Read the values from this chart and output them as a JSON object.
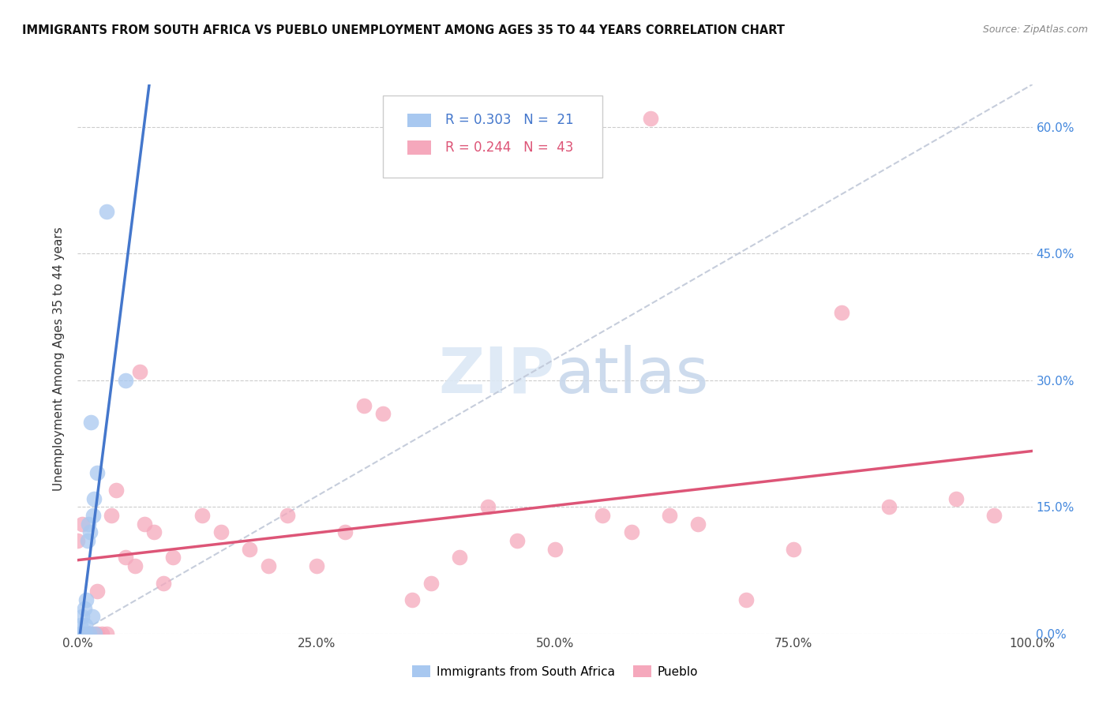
{
  "title": "IMMIGRANTS FROM SOUTH AFRICA VS PUEBLO UNEMPLOYMENT AMONG AGES 35 TO 44 YEARS CORRELATION CHART",
  "source": "Source: ZipAtlas.com",
  "ylabel": "Unemployment Among Ages 35 to 44 years",
  "blue_label": "Immigrants from South Africa",
  "pink_label": "Pueblo",
  "blue_R": "R = 0.303",
  "blue_N": "N =  21",
  "pink_R": "R = 0.244",
  "pink_N": "N =  43",
  "blue_color": "#a8c8f0",
  "pink_color": "#f5a8bc",
  "blue_line_color": "#4477cc",
  "pink_line_color": "#dd5577",
  "trend_line_color": "#c0c8d8",
  "background_color": "#ffffff",
  "blue_R_color": "#4477cc",
  "pink_R_color": "#dd5577",
  "right_axis_color": "#4488dd",
  "blue_scatter_x": [
    0.002,
    0.003,
    0.004,
    0.005,
    0.006,
    0.007,
    0.008,
    0.008,
    0.009,
    0.01,
    0.011,
    0.012,
    0.013,
    0.014,
    0.015,
    0.016,
    0.017,
    0.018,
    0.02,
    0.03,
    0.05
  ],
  "blue_scatter_y": [
    0.0,
    0.01,
    0.0,
    0.02,
    0.0,
    0.03,
    0.0,
    0.01,
    0.04,
    0.11,
    0.13,
    0.0,
    0.12,
    0.25,
    0.02,
    0.14,
    0.16,
    0.0,
    0.19,
    0.5,
    0.3
  ],
  "pink_scatter_x": [
    0.0,
    0.005,
    0.01,
    0.015,
    0.02,
    0.02,
    0.025,
    0.03,
    0.035,
    0.04,
    0.05,
    0.06,
    0.065,
    0.07,
    0.08,
    0.09,
    0.1,
    0.13,
    0.15,
    0.18,
    0.2,
    0.22,
    0.25,
    0.28,
    0.3,
    0.32,
    0.35,
    0.37,
    0.4,
    0.43,
    0.46,
    0.5,
    0.55,
    0.58,
    0.6,
    0.62,
    0.65,
    0.7,
    0.75,
    0.8,
    0.85,
    0.92,
    0.96
  ],
  "pink_scatter_y": [
    0.11,
    0.13,
    0.0,
    0.0,
    0.05,
    0.0,
    0.0,
    0.0,
    0.14,
    0.17,
    0.09,
    0.08,
    0.31,
    0.13,
    0.12,
    0.06,
    0.09,
    0.14,
    0.12,
    0.1,
    0.08,
    0.14,
    0.08,
    0.12,
    0.27,
    0.26,
    0.04,
    0.06,
    0.09,
    0.15,
    0.11,
    0.1,
    0.14,
    0.12,
    0.61,
    0.14,
    0.13,
    0.04,
    0.1,
    0.38,
    0.15,
    0.16,
    0.14
  ],
  "xlim": [
    0.0,
    1.0
  ],
  "ylim": [
    0.0,
    0.65
  ],
  "ytick_vals": [
    0.0,
    0.15,
    0.3,
    0.45,
    0.6
  ],
  "ytick_labels": [
    "0.0%",
    "15.0%",
    "30.0%",
    "45.0%",
    "60.0%"
  ],
  "xtick_vals": [
    0.0,
    0.25,
    0.5,
    0.75,
    1.0
  ],
  "xtick_labels": [
    "0.0%",
    "25.0%",
    "50.0%",
    "75.0%",
    "100.0%"
  ]
}
